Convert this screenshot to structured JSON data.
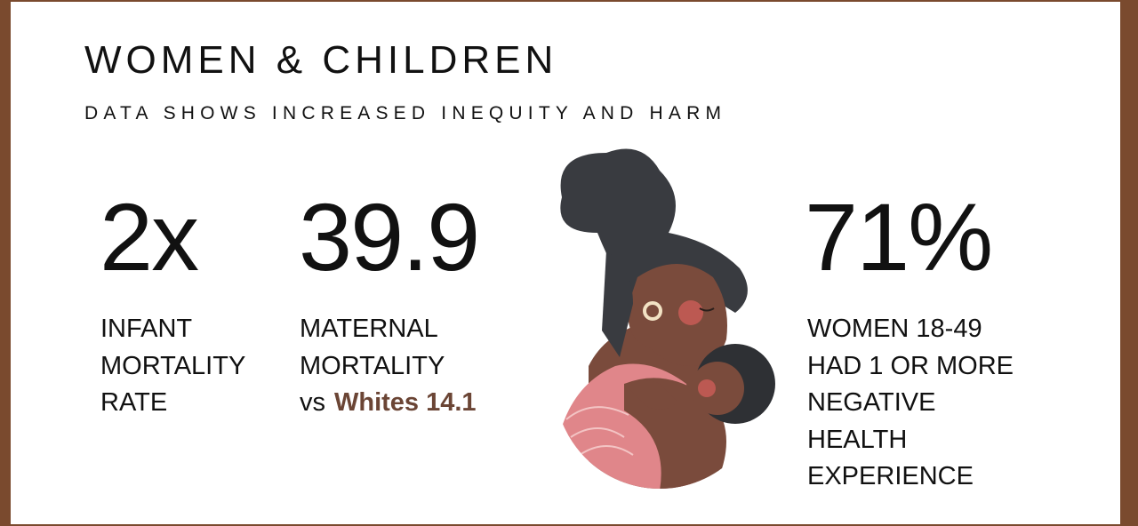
{
  "header": {
    "title": "WOMEN & CHILDREN",
    "subtitle": "DATA SHOWS INCREASED INEQUITY AND HARM"
  },
  "stats": [
    {
      "value": "2x",
      "label_lines": [
        "INFANT",
        "MORTALITY",
        "RATE"
      ]
    },
    {
      "value": "39.9",
      "label_lines": [
        "MATERNAL",
        "MORTALITY"
      ],
      "comparison": {
        "prefix": "vs",
        "highlight": "Whites 14.1"
      }
    },
    {
      "value": "71%",
      "label_lines": [
        "WOMEN 18-49",
        "HAD 1 OR MORE",
        "NEGATIVE",
        "HEALTH",
        "EXPERIENCE"
      ]
    }
  ]
}
